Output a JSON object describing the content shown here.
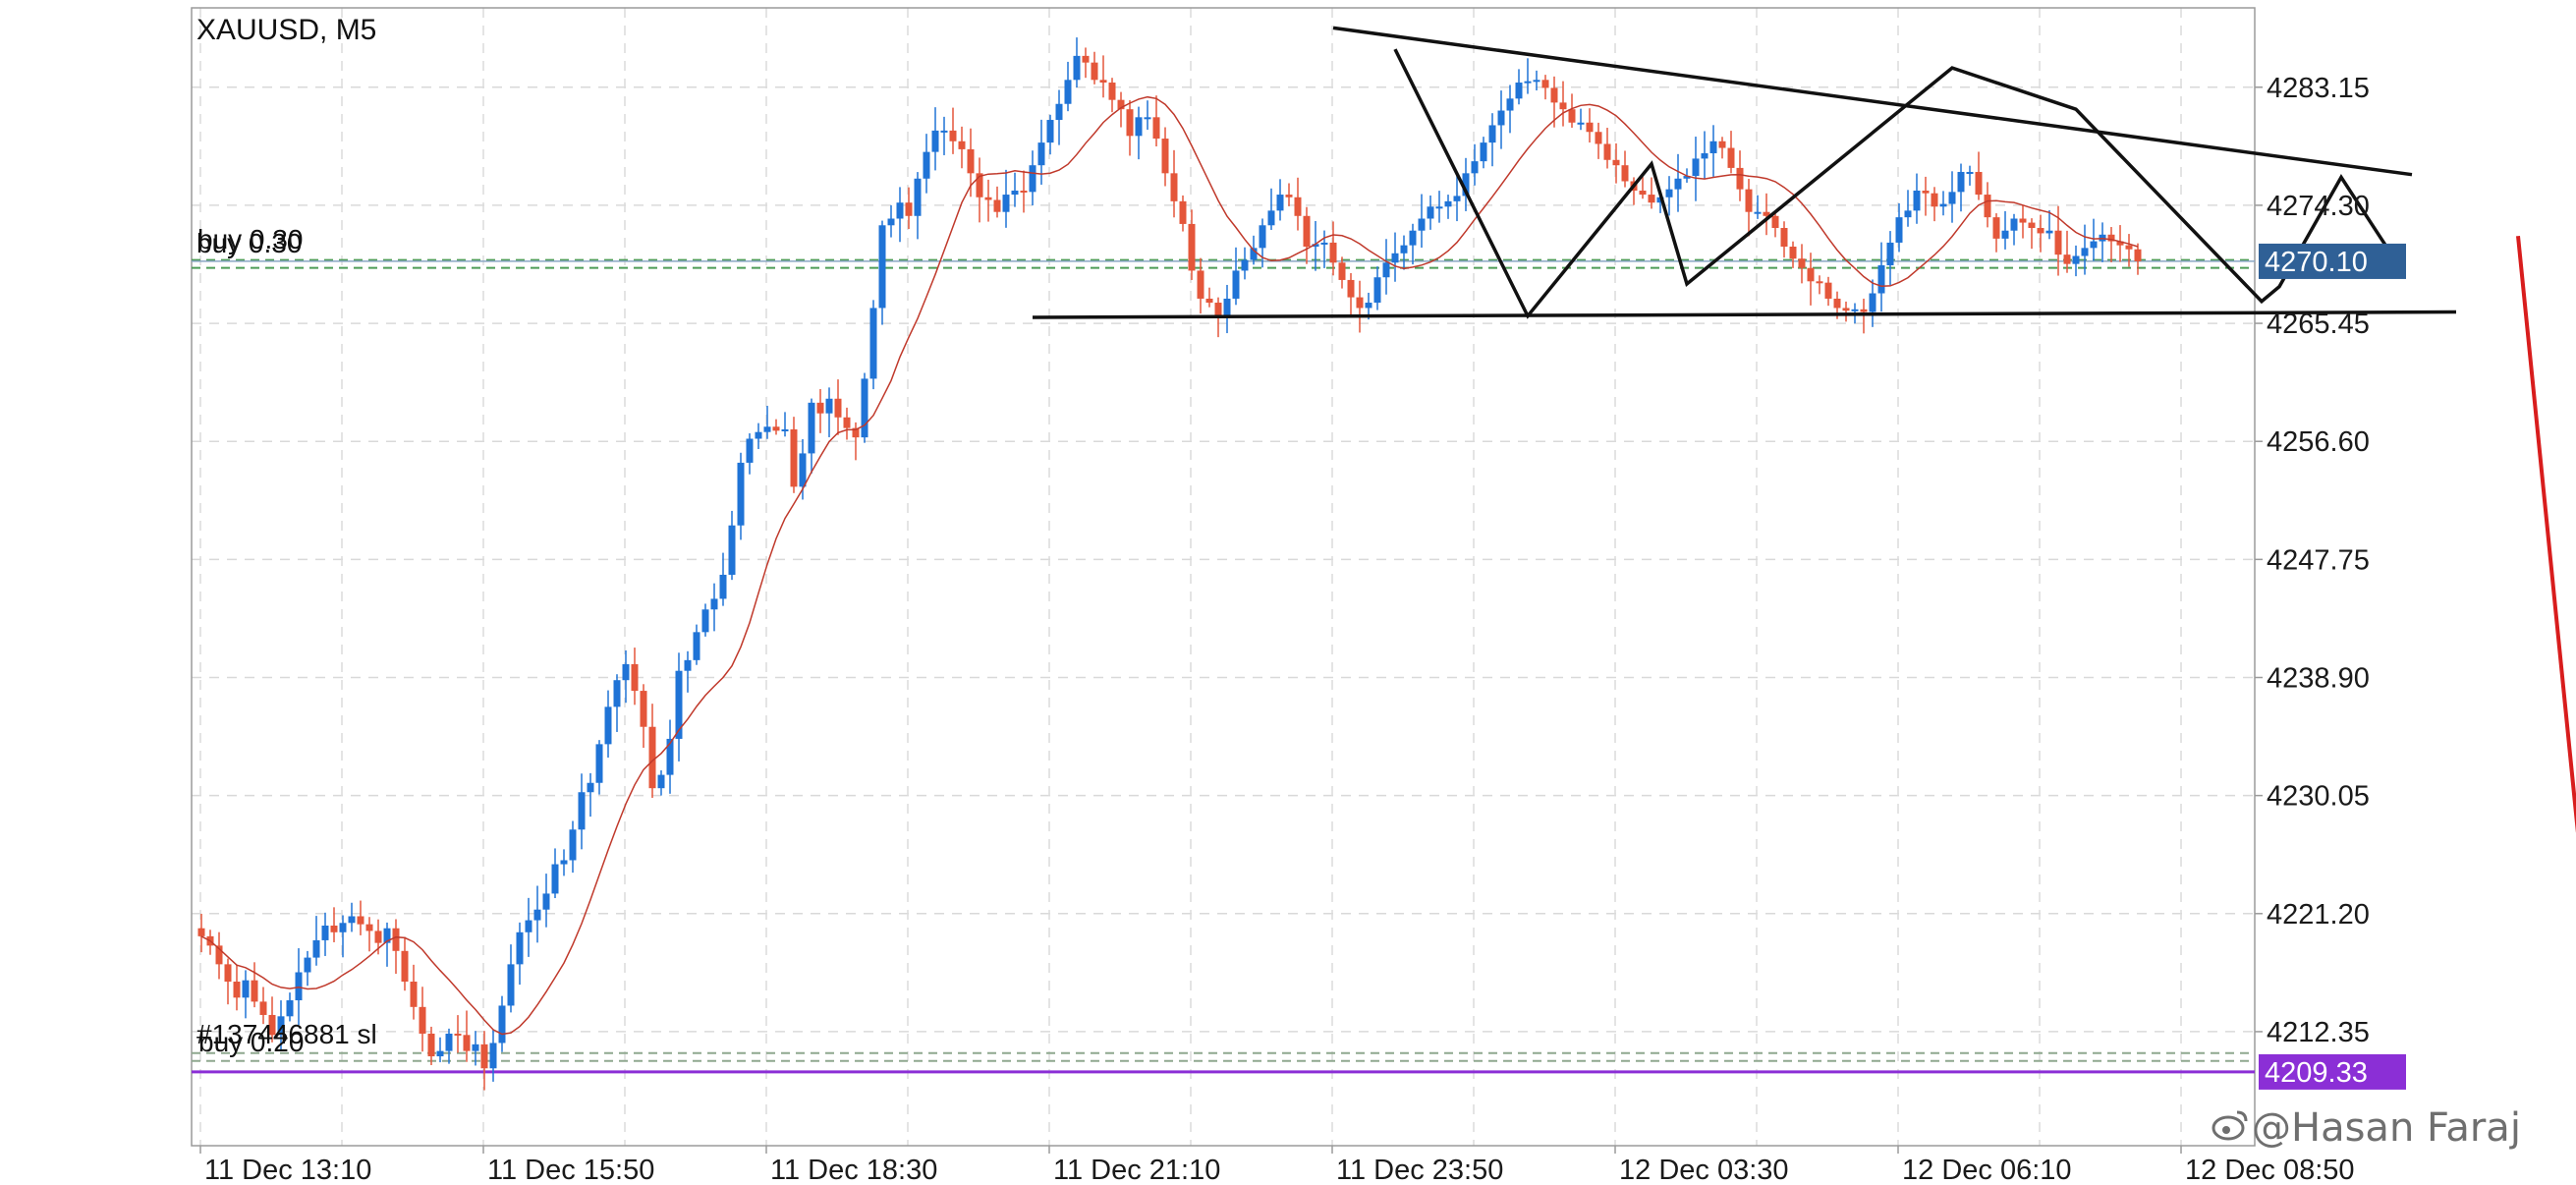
{
  "chart_data": {
    "type": "candlestick",
    "symbol": "XAUUSD, M5",
    "ylim": [
      4203.8,
      4289.1
    ],
    "y_ticks": [
      4283.15,
      4274.3,
      4265.45,
      4256.6,
      4247.75,
      4238.9,
      4230.05,
      4221.2,
      4212.35
    ],
    "y_tick_labels": [
      "4283.15",
      "4274.30",
      "4265.45",
      "4256.60",
      "4247.75",
      "4238.90",
      "4230.05",
      "4221.20",
      "4212.35"
    ],
    "x_tick_labels": [
      "11 Dec 13:10",
      "11 Dec 15:50",
      "11 Dec 18:30",
      "11 Dec 21:10",
      "11 Dec 23:50",
      "12 Dec 03:30",
      "12 Dec 06:10",
      "12 Dec 08:50"
    ],
    "bars_per_tick": 32,
    "grid": true,
    "price_badges": [
      {
        "value": 4270.1,
        "label": "4270.10",
        "color": "#2f6096"
      },
      {
        "value": 4209.33,
        "label": "4209.33",
        "color": "#8b2fd6"
      }
    ],
    "order_lines": [
      {
        "label": "buy 0.30",
        "value": 4269.9
      },
      {
        "label": "buy 0.20",
        "value": 4210.3
      },
      {
        "label": "#137446881 sl",
        "value": 4210.1
      }
    ],
    "close_series": [
      4219.5,
      4218.8,
      4217.4,
      4216.1,
      4214.9,
      4216.2,
      4214.6,
      4213.6,
      4212.1,
      4213.5,
      4214.7,
      4216.8,
      4217.9,
      4219.2,
      4220.3,
      4219.8,
      4220.5,
      4221.0,
      4220.4,
      4219.9,
      4219.0,
      4220.1,
      4218.4,
      4216.1,
      4214.2,
      4212.2,
      4210.5,
      4210.9,
      4212.2,
      4212.1,
      4210.9,
      4211.4,
      4209.6,
      4211.5,
      4214.3,
      4217.4,
      4219.8,
      4220.7,
      4221.5,
      4222.7,
      4224.9,
      4225.2,
      4227.5,
      4230.3,
      4231.0,
      4233.9,
      4236.7,
      4238.7,
      4239.9,
      4237.9,
      4235.2,
      4230.6,
      4231.6,
      4234.3,
      4239.4,
      4240.2,
      4242.3,
      4244.0,
      4244.8,
      4246.6,
      4250.3,
      4255.0,
      4256.8,
      4257.3,
      4257.7,
      4257.4,
      4257.5,
      4253.2,
      4255.7,
      4259.5,
      4258.7,
      4259.8,
      4258.4,
      4257.6,
      4256.9,
      4261.3,
      4266.6,
      4272.8,
      4273.3,
      4274.5,
      4273.5,
      4276.3,
      4278.3,
      4279.9,
      4279.9,
      4279.1,
      4278.5,
      4276.7,
      4274.9,
      4274.7,
      4273.8,
      4275.1,
      4275.4,
      4275.3,
      4277.3,
      4279.0,
      4280.7,
      4281.9,
      4283.7,
      4285.5,
      4285.0,
      4283.7,
      4283.5,
      4282.2,
      4281.5,
      4279.5,
      4280.9,
      4280.9,
      4279.3,
      4276.7,
      4274.6,
      4272.9,
      4269.4,
      4267.3,
      4267.0,
      4265.9,
      4267.3,
      4269.4,
      4270.2,
      4271.1,
      4272.8,
      4273.9,
      4275.1,
      4274.9,
      4273.5,
      4271.2,
      4271.4,
      4271.5,
      4270.0,
      4268.7,
      4267.4,
      4266.6,
      4267.0,
      4268.9,
      4270.0,
      4270.7,
      4271.3,
      4272.4,
      4273.3,
      4274.2,
      4274.2,
      4274.6,
      4275.0,
      4276.7,
      4277.6,
      4279.0,
      4280.3,
      4281.4,
      4282.3,
      4283.5,
      4283.6,
      4283.7,
      4283.1,
      4282.0,
      4281.5,
      4280.5,
      4280.5,
      4279.8,
      4278.9,
      4277.7,
      4277.3,
      4276.1,
      4275.4,
      4275.1,
      4274.5,
      4274.9,
      4275.5,
      4276.3,
      4276.5,
      4277.8,
      4278.2,
      4279.1,
      4278.6,
      4277.1,
      4275.5,
      4273.8,
      4273.8,
      4273.5,
      4272.6,
      4271.2,
      4270.3,
      4269.6,
      4268.6,
      4268.5,
      4267.3,
      4266.6,
      4266.4,
      4266.5,
      4266.3,
      4267.7,
      4269.8,
      4271.5,
      4273.4,
      4273.9,
      4275.4,
      4275.2,
      4274.2,
      4274.4,
      4275.3,
      4276.8,
      4276.8,
      4275.1,
      4273.4,
      4271.8,
      4272.4,
      4273.3,
      4273.0,
      4272.6,
      4272.2,
      4272.4,
      4270.6,
      4269.9,
      4270.5,
      4271.1,
      4271.6,
      4272.1,
      4271.6,
      4271.3,
      4271.0,
      4270.1
    ],
    "ma_line": {
      "period": 12,
      "color": "#c0392b"
    },
    "candle_colors": {
      "up": "#1f73d6",
      "down": "#e4563a"
    },
    "annotations": {
      "trendline_top": [
        [
          128,
          4287.6
        ],
        [
          250,
          4276.6
        ]
      ],
      "trendline_bottom": [
        [
          94,
          4265.9
        ],
        [
          255,
          4266.3
        ]
      ],
      "zigzags": [
        [
          [
            135,
            4286.0
          ],
          [
            150,
            4266.0
          ],
          [
            164,
            4277.4
          ],
          [
            168,
            4268.4
          ],
          [
            198,
            4284.6
          ],
          [
            212,
            4281.5
          ],
          [
            233,
            4267.1
          ],
          [
            235,
            4268.2
          ],
          [
            242,
            4276.4
          ],
          [
            248,
            4270.3
          ]
        ]
      ],
      "forecast_arrow": {
        "from": [
          262,
          4272.0
        ],
        "to": [
          271,
          4210.8
        ],
        "color": "#d81d1d"
      }
    }
  },
  "watermark": "@Hasan Faraj"
}
